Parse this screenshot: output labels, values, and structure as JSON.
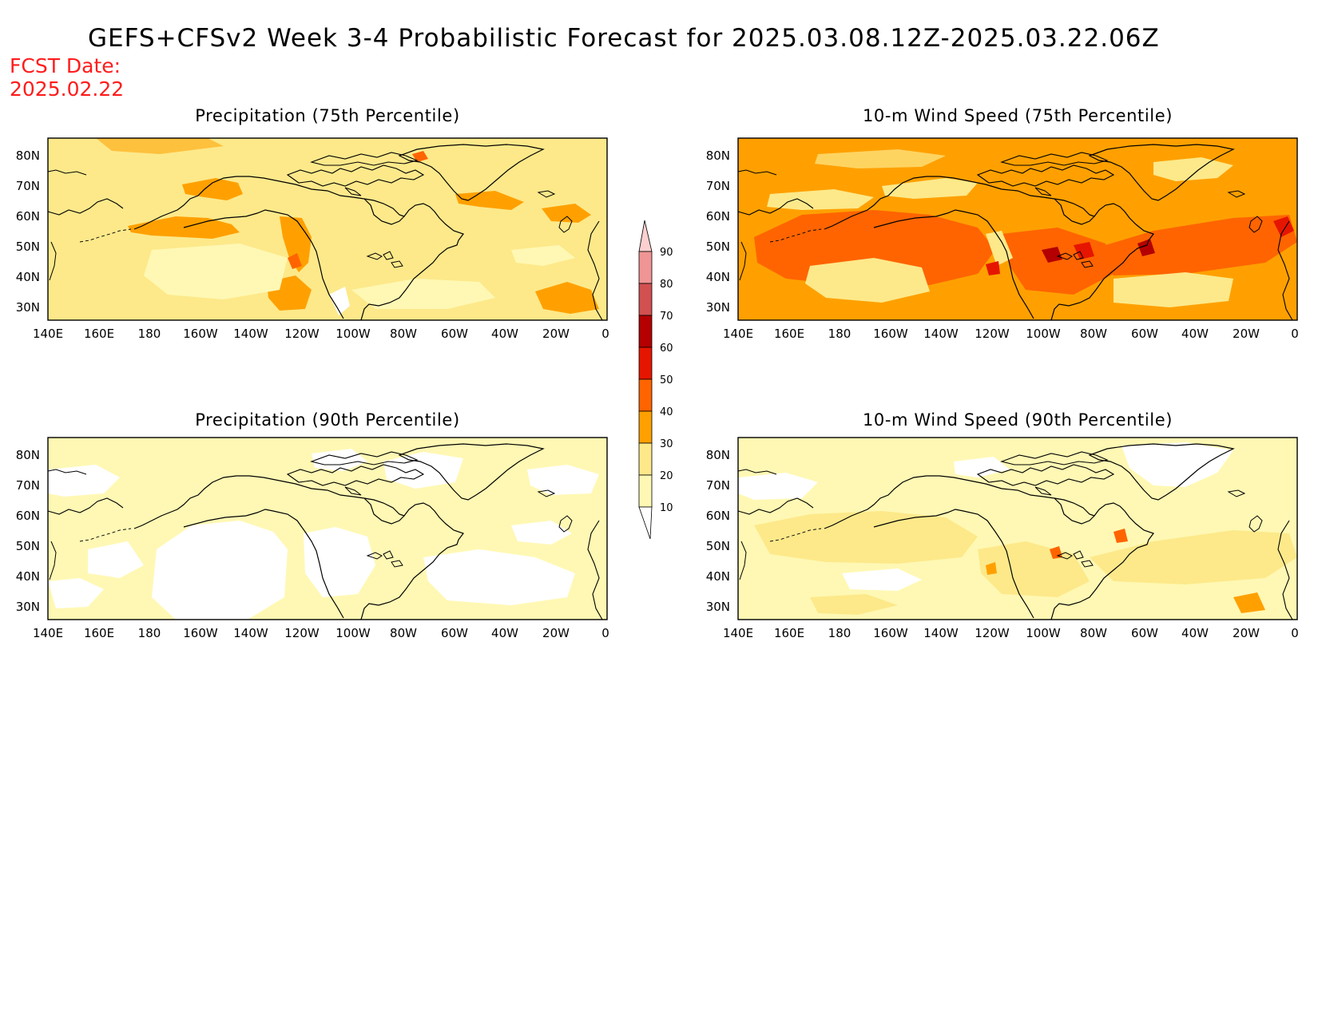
{
  "title": "GEFS+CFSv2 Week 3-4 Probabilistic Forecast for 2025.03.08.12Z-2025.03.22.06Z",
  "fcst_date": {
    "line1": "FCST Date:",
    "line2": "2025.02.22"
  },
  "colorbar": {
    "levels": [
      "10",
      "20",
      "30",
      "40",
      "50",
      "60",
      "70",
      "80",
      "90"
    ],
    "colors": [
      "#fff8b4",
      "#fde98a",
      "#ffa000",
      "#ff6400",
      "#e61500",
      "#b40000",
      "#d25050",
      "#f09595",
      "#fdd0d0"
    ]
  },
  "lon_ticks": [
    "140E",
    "160E",
    "180",
    "160W",
    "140W",
    "120W",
    "100W",
    "80W",
    "60W",
    "40W",
    "20W",
    "0"
  ],
  "lat_ticks": [
    "80N",
    "70N",
    "60N",
    "50N",
    "40N",
    "30N"
  ],
  "panels": [
    {
      "id": "precip-75",
      "title": "Precipitation (75th Percentile)",
      "background": "#fde98a",
      "dominant_category": "20-30",
      "features": [
        "orange patches over northern Pacific, west coast of North America and Greenland",
        "paler 10-20 area over central Pacific"
      ]
    },
    {
      "id": "wind-75",
      "title": "10-m Wind Speed (75th Percentile)",
      "background": "#ffa000",
      "dominant_category": "30-40",
      "features": [
        "40-50 bands across mid-latitude Pacific and Atlantic",
        "50-70 spots near Great Lakes"
      ]
    },
    {
      "id": "precip-90",
      "title": "Precipitation (90th Percentile)",
      "background": "#fff8b4",
      "dominant_category": "10-20",
      "features": [
        "large below-10 area over northeast Pacific and western Atlantic"
      ]
    },
    {
      "id": "wind-90",
      "title": "10-m Wind Speed (90th Percentile)",
      "background": "#fff8b4",
      "dominant_category": "10-20",
      "features": [
        "20-30 bands across mid-latitudes",
        "below-10 over Greenland"
      ]
    }
  ]
}
